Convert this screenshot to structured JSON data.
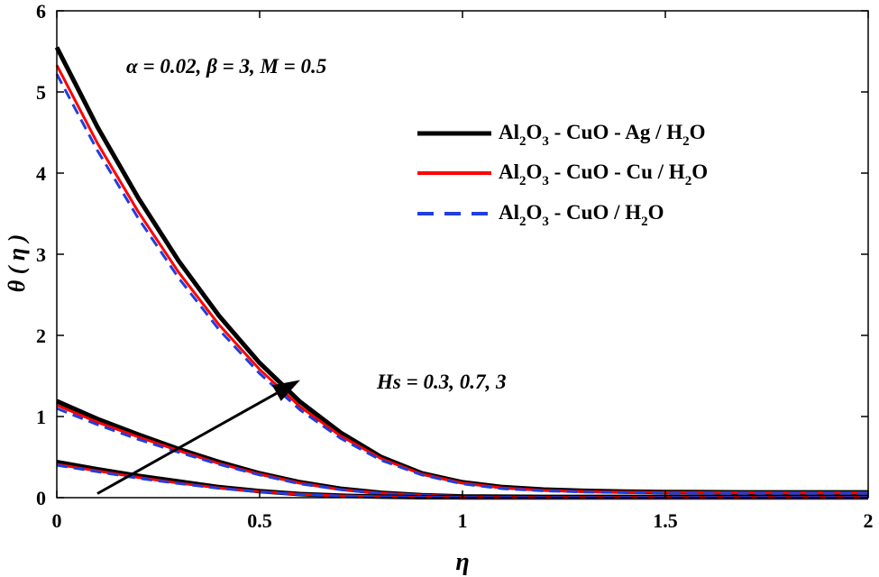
{
  "chart_data": {
    "type": "line",
    "xlabel": "η",
    "ylabel": "θ ( η )",
    "xlim": [
      0,
      2
    ],
    "ylim": [
      0,
      6
    ],
    "xticks": [
      0,
      0.5,
      1,
      1.5,
      2
    ],
    "xtick_labels": [
      "0",
      "0.5",
      "1",
      "1.5",
      "2"
    ],
    "yticks": [
      0,
      1,
      2,
      3,
      4,
      5,
      6
    ],
    "ytick_labels": [
      "0",
      "1",
      "2",
      "3",
      "4",
      "5",
      "6"
    ],
    "params_annotation": "α = 0.02, β = 3, M = 0.5",
    "arrow_annotation": "Hs = 0.3, 0.7, 3",
    "arrow": {
      "from": [
        0.1,
        0.05
      ],
      "to": [
        0.6,
        1.45
      ]
    },
    "legend_position": "top-right",
    "legend": [
      {
        "main": "Al",
        "s1": "2",
        "m2": "O",
        "s2": "3",
        "m3": " - CuO - Ag / H",
        "s3": "2",
        "m4": "O",
        "color": "#000000",
        "dash": "solid"
      },
      {
        "main": "Al",
        "s1": "2",
        "m2": "O",
        "s2": "3",
        "m3": " - CuO - Cu / H",
        "s3": "2",
        "m4": "O",
        "color": "#ff0000",
        "dash": "solid"
      },
      {
        "main": "Al",
        "s1": "2",
        "m2": "O",
        "s2": "3",
        "m3": " - CuO / H",
        "s3": "2",
        "m4": "O",
        "color": "#1f3fdf",
        "dash": "dashed"
      }
    ],
    "series": [
      {
        "group": "Hs = 3",
        "fluid": "Al2O3 - CuO - Ag / H2O",
        "color": "#000000",
        "dash": "solid",
        "width": 5,
        "x": [
          0,
          0.1,
          0.2,
          0.3,
          0.4,
          0.5,
          0.6,
          0.7,
          0.8,
          0.9,
          1.0,
          1.1,
          1.2,
          1.3,
          1.4,
          1.5,
          1.6,
          1.7,
          1.8,
          1.9,
          2.0
        ],
        "y": [
          5.55,
          4.57,
          3.7,
          2.92,
          2.24,
          1.66,
          1.18,
          0.8,
          0.5,
          0.3,
          0.19,
          0.13,
          0.1,
          0.085,
          0.075,
          0.07,
          0.068,
          0.066,
          0.065,
          0.065,
          0.065
        ]
      },
      {
        "group": "Hs = 3",
        "fluid": "Al2O3 - CuO - Cu / H2O",
        "color": "#ff0000",
        "dash": "solid",
        "width": 3,
        "x": [
          0,
          0.1,
          0.2,
          0.3,
          0.4,
          0.5,
          0.6,
          0.7,
          0.8,
          0.9,
          1.0,
          1.1,
          1.2,
          1.3,
          1.4,
          1.5,
          1.6,
          1.7,
          1.8,
          1.9,
          2.0
        ],
        "y": [
          5.33,
          4.37,
          3.53,
          2.78,
          2.13,
          1.58,
          1.12,
          0.76,
          0.48,
          0.29,
          0.18,
          0.12,
          0.09,
          0.075,
          0.068,
          0.064,
          0.062,
          0.061,
          0.06,
          0.06,
          0.06
        ]
      },
      {
        "group": "Hs = 3",
        "fluid": "Al2O3 - CuO / H2O",
        "color": "#1f3fdf",
        "dash": "dashed",
        "width": 3,
        "x": [
          0,
          0.1,
          0.2,
          0.3,
          0.4,
          0.5,
          0.6,
          0.7,
          0.8,
          0.9,
          1.0,
          1.1,
          1.2,
          1.3,
          1.4,
          1.5,
          1.6,
          1.7,
          1.8,
          1.9,
          2.0
        ],
        "y": [
          5.22,
          4.28,
          3.45,
          2.71,
          2.07,
          1.53,
          1.08,
          0.73,
          0.46,
          0.28,
          0.17,
          0.11,
          0.085,
          0.07,
          0.062,
          0.058,
          0.056,
          0.055,
          0.055,
          0.055,
          0.055
        ]
      },
      {
        "group": "Hs = 0.7",
        "fluid": "Al2O3 - CuO - Ag / H2O",
        "color": "#000000",
        "dash": "solid",
        "width": 5,
        "x": [
          0,
          0.1,
          0.2,
          0.3,
          0.4,
          0.5,
          0.6,
          0.7,
          0.8,
          0.9,
          1.0,
          1.2,
          1.4,
          1.6,
          1.8,
          2.0
        ],
        "y": [
          1.19,
          0.97,
          0.78,
          0.6,
          0.44,
          0.3,
          0.19,
          0.11,
          0.06,
          0.03,
          0.015,
          0.01,
          0.01,
          0.01,
          0.01,
          0.01
        ]
      },
      {
        "group": "Hs = 0.7",
        "fluid": "Al2O3 - CuO - Cu / H2O",
        "color": "#ff0000",
        "dash": "solid",
        "width": 3,
        "x": [
          0,
          0.1,
          0.2,
          0.3,
          0.4,
          0.5,
          0.6,
          0.7,
          0.8,
          0.9,
          1.0,
          1.2,
          1.4,
          1.6,
          1.8,
          2.0
        ],
        "y": [
          1.14,
          0.93,
          0.75,
          0.58,
          0.42,
          0.29,
          0.18,
          0.1,
          0.055,
          0.03,
          0.015,
          0.01,
          0.01,
          0.01,
          0.01,
          0.01
        ]
      },
      {
        "group": "Hs = 0.7",
        "fluid": "Al2O3 - CuO / H2O",
        "color": "#1f3fdf",
        "dash": "dashed",
        "width": 3,
        "x": [
          0,
          0.1,
          0.2,
          0.3,
          0.4,
          0.5,
          0.6,
          0.7,
          0.8,
          0.9,
          1.0,
          1.2,
          1.4,
          1.6,
          1.8,
          2.0
        ],
        "y": [
          1.1,
          0.9,
          0.72,
          0.56,
          0.41,
          0.28,
          0.17,
          0.1,
          0.05,
          0.028,
          0.014,
          0.01,
          0.01,
          0.01,
          0.01,
          0.01
        ]
      },
      {
        "group": "Hs = 0.3",
        "fluid": "Al2O3 - CuO - Ag / H2O",
        "color": "#000000",
        "dash": "solid",
        "width": 5,
        "x": [
          0,
          0.1,
          0.2,
          0.3,
          0.4,
          0.5,
          0.6,
          0.7,
          0.8,
          0.9,
          1.0,
          1.2,
          1.4,
          1.6,
          1.8,
          2.0
        ],
        "y": [
          0.44,
          0.35,
          0.27,
          0.2,
          0.13,
          0.08,
          0.045,
          0.025,
          0.012,
          0.006,
          0.003,
          0.002,
          0.002,
          0.002,
          0.002,
          0.002
        ]
      },
      {
        "group": "Hs = 0.3",
        "fluid": "Al2O3 - CuO - Cu / H2O",
        "color": "#ff0000",
        "dash": "solid",
        "width": 3,
        "x": [
          0,
          0.1,
          0.2,
          0.3,
          0.4,
          0.5,
          0.6,
          0.7,
          0.8,
          0.9,
          1.0,
          1.2,
          1.4,
          1.6,
          1.8,
          2.0
        ],
        "y": [
          0.41,
          0.33,
          0.25,
          0.18,
          0.12,
          0.075,
          0.042,
          0.022,
          0.011,
          0.005,
          0.003,
          0.002,
          0.002,
          0.002,
          0.002,
          0.002
        ]
      },
      {
        "group": "Hs = 0.3",
        "fluid": "Al2O3 - CuO / H2O",
        "color": "#1f3fdf",
        "dash": "dashed",
        "width": 3,
        "x": [
          0,
          0.1,
          0.2,
          0.3,
          0.4,
          0.5,
          0.6,
          0.7,
          0.8,
          0.9,
          1.0,
          1.2,
          1.4,
          1.6,
          1.8,
          2.0
        ],
        "y": [
          0.4,
          0.32,
          0.24,
          0.175,
          0.115,
          0.072,
          0.04,
          0.021,
          0.01,
          0.005,
          0.003,
          0.002,
          0.002,
          0.002,
          0.002,
          0.002
        ]
      }
    ]
  }
}
